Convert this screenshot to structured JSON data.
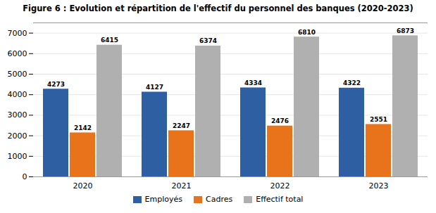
{
  "chart_data": {
    "type": "bar",
    "title": "Figure 6 : Evolution et répartition de l'effectif du personnel des banques (2020-2023)",
    "categories": [
      "2020",
      "2021",
      "2022",
      "2023"
    ],
    "series": [
      {
        "name": "Employés",
        "color": "#2E5FA3",
        "values": [
          4273,
          4127,
          4334,
          4322
        ]
      },
      {
        "name": "Cadres",
        "color": "#E8731A",
        "values": [
          2142,
          2247,
          2476,
          2551
        ]
      },
      {
        "name": "Effectif total",
        "color": "#B0B0B0",
        "values": [
          6415,
          6374,
          6810,
          6873
        ]
      }
    ],
    "ylim": [
      0,
      7500
    ],
    "yticks": [
      0,
      1000,
      2000,
      3000,
      4000,
      5000,
      6000,
      7000
    ],
    "grid": true,
    "legend": "bottom",
    "data_labels": true
  }
}
